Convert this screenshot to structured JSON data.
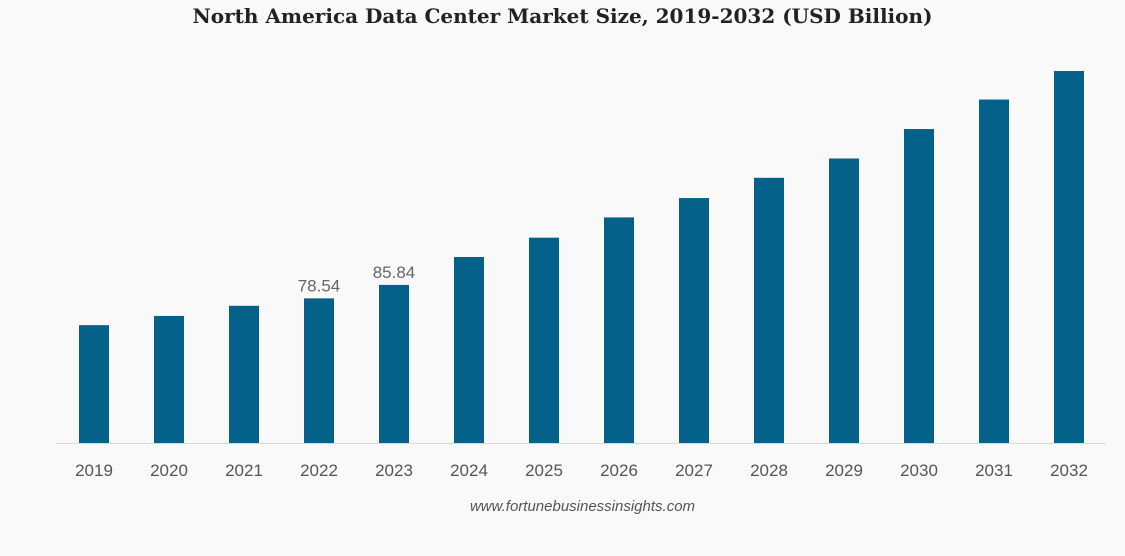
{
  "chart_data": {
    "type": "bar",
    "title": "North America Data Center Market Size, 2019-2032 (USD Billion)",
    "xlabel": "",
    "ylabel": "",
    "categories": [
      "2019",
      "2020",
      "2021",
      "2022",
      "2023",
      "2024",
      "2025",
      "2026",
      "2027",
      "2028",
      "2029",
      "2030",
      "2031",
      "2032"
    ],
    "values": [
      64.0,
      69.0,
      74.5,
      78.54,
      85.84,
      101.0,
      111.5,
      122.5,
      133.0,
      144.0,
      154.5,
      170.5,
      186.5,
      202.0
    ],
    "data_labels": [
      null,
      null,
      null,
      "78.54",
      "85.84",
      null,
      null,
      null,
      null,
      null,
      null,
      null,
      null,
      null
    ],
    "ylim": [
      0,
      210
    ],
    "grid": false,
    "legend": "none",
    "bar_color": "#04628a",
    "axis_color": "#d9d9d9"
  },
  "source": "www.fortunebusinessinsights.com",
  "background_color": "#f9f9f9"
}
